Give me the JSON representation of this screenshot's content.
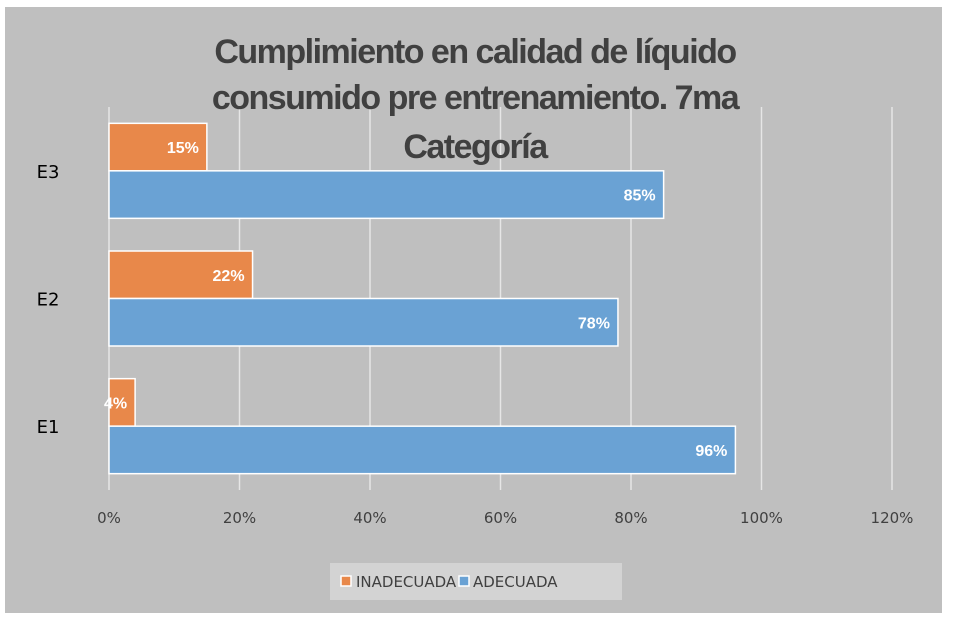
{
  "chart_data": {
    "type": "bar",
    "orientation": "horizontal",
    "title_lines": [
      "Cumplimiento en calidad de líquido",
      "consumido pre entrenamiento. 7ma",
      "Categoría"
    ],
    "categories": [
      "E1",
      "E2",
      "E3"
    ],
    "series": [
      {
        "name": "INADECUADA",
        "values": [
          4,
          22,
          15
        ],
        "labels": [
          "4%",
          "22%",
          "15%"
        ],
        "color": "#E8884A"
      },
      {
        "name": "ADECUADA",
        "values": [
          96,
          78,
          85
        ],
        "labels": [
          "96%",
          "78%",
          "85%"
        ],
        "color": "#6AA2D4"
      }
    ],
    "xlim": [
      0,
      120
    ],
    "xticks": [
      "0%",
      "20%",
      "40%",
      "60%",
      "80%",
      "100%",
      "120%"
    ],
    "grid": true,
    "legend": "bottom",
    "background": "#BFBFBF"
  }
}
